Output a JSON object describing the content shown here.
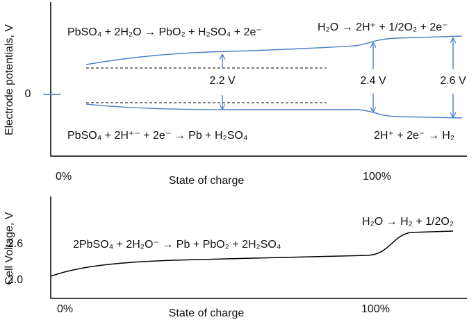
{
  "top": {
    "y_label": "Electrode potentials, V",
    "y_tick": "0",
    "eq_pos_charge": "PbSO₄ + 2H₂O → PbO₂ + H₂SO₄ + 2e⁻",
    "eq_pos_over": "H₂O → 2H⁺ + 1/2O₂ + 2e⁻",
    "eq_neg_charge": "PbSO₄ + 2H⁺⁻ + 2e⁻ → Pb + H₂SO₄",
    "eq_neg_over": "2H⁺ + 2e⁻ → H₂",
    "gap_labels": [
      "2.2 V",
      "2.4 V",
      "2.6 V"
    ],
    "x_start": "0%",
    "x_label": "State of charge",
    "x_end": "100%"
  },
  "bottom": {
    "y_label": "Cell Voltage, V",
    "y_ticks": [
      "2.6",
      "2.0"
    ],
    "eq_cell": "2PbSO₄ + 2H₂O⁻ → Pb + PbO₂ + 2H₂SO₄",
    "eq_over": "H₂O → H₂ + 1/2O₂",
    "x_start": "0%",
    "x_label": "State of charge",
    "x_end": "100%"
  }
}
